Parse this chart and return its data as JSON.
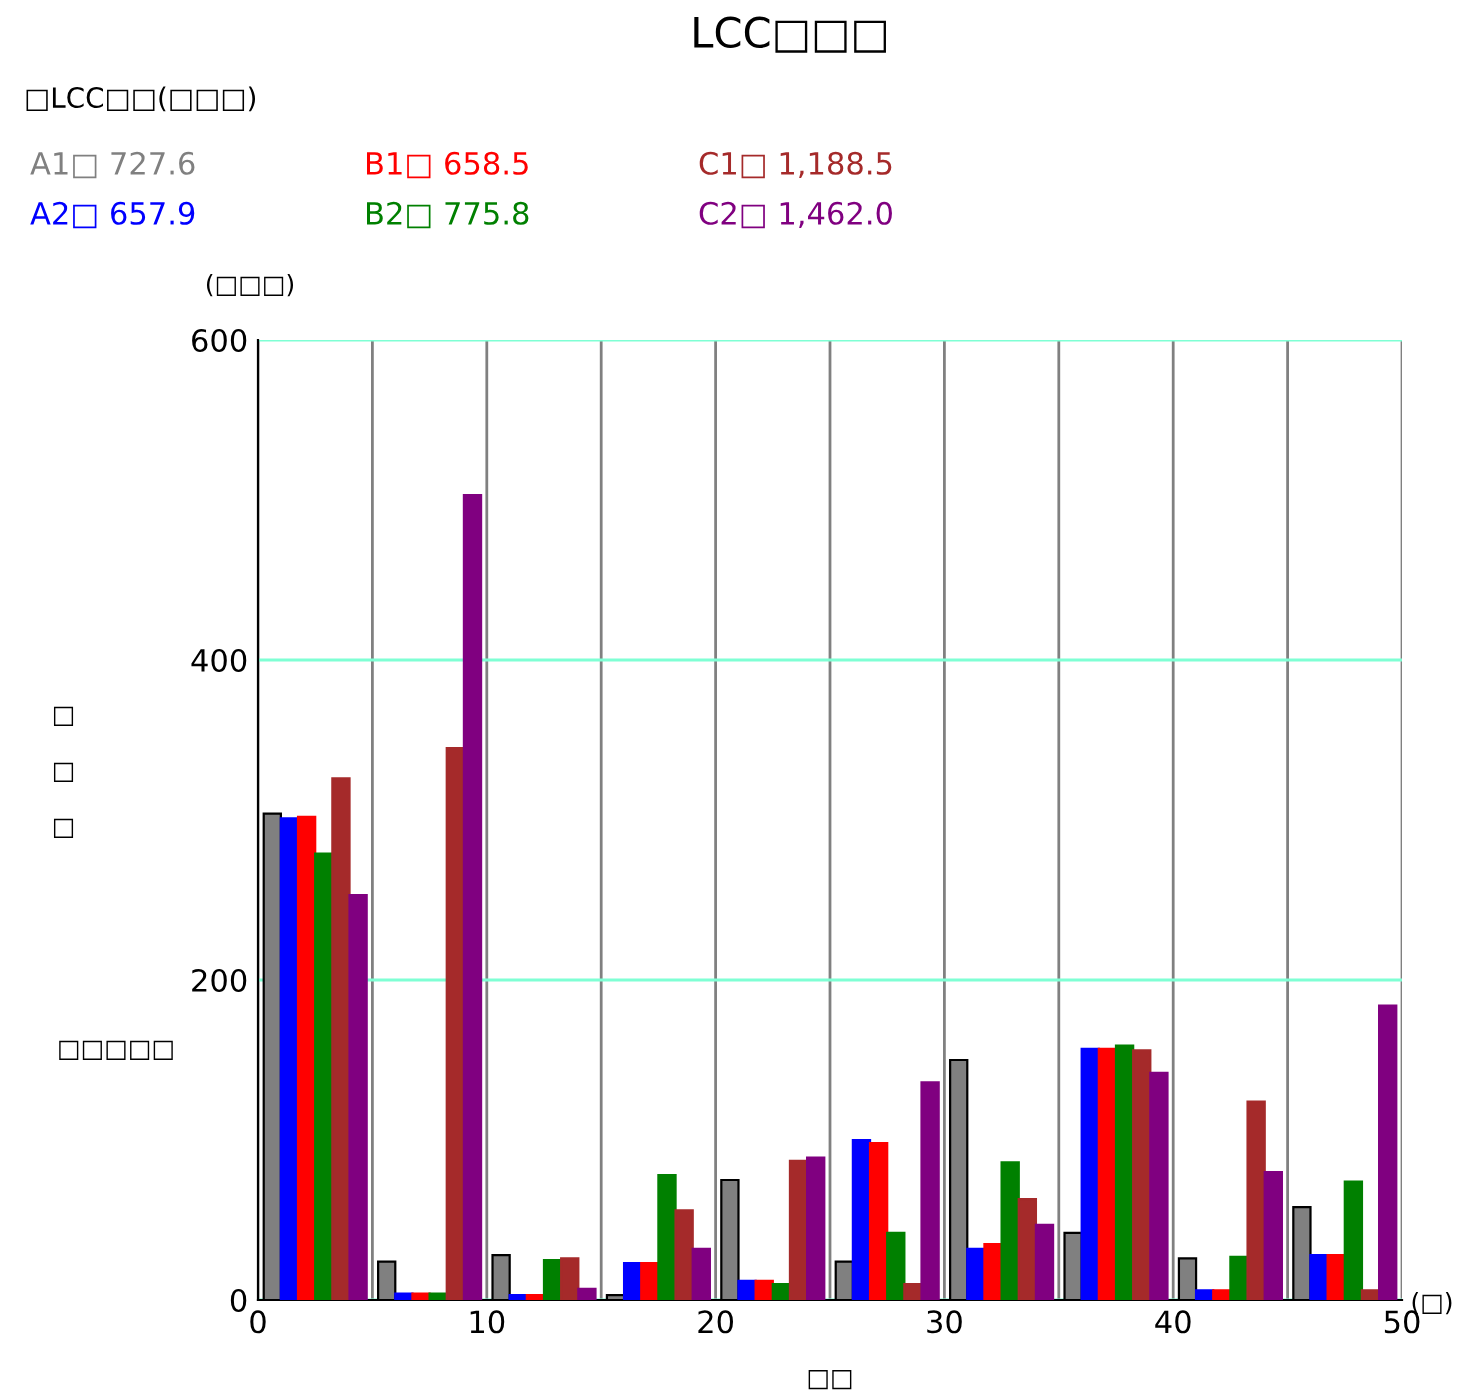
{
  "chart_data": {
    "type": "bar",
    "title": "LCC□□□",
    "subtitle": "□LCC□□(□□□)",
    "xlabel": "□□",
    "ylabel": "□□□",
    "annotations": [
      "(□□□)",
      "(□)",
      "□□□□□"
    ],
    "series": [
      {
        "name": "A1□ 727.6",
        "color": "#808080",
        "x": [
          0.625,
          5.625,
          10.625,
          15.625,
          20.625,
          25.625,
          30.625,
          35.625,
          40.625,
          45.625
        ],
        "values": [
          304,
          24,
          28,
          3,
          75,
          24,
          150,
          42,
          26,
          58
        ]
      },
      {
        "name": "A2□ 657.9",
        "color": "#0000ff",
        "x": [
          1.375,
          6.375,
          11.375,
          16.375,
          21.375,
          26.375,
          31.375,
          36.375,
          41.375,
          46.375
        ],
        "values": [
          301,
          4,
          3,
          23,
          12,
          100,
          32,
          157,
          6,
          28
        ]
      },
      {
        "name": "B1□ 658.5",
        "color": "#ff0000",
        "x": [
          2.125,
          7.125,
          12.125,
          17.125,
          22.125,
          27.125,
          32.125,
          37.125,
          42.125,
          47.125
        ],
        "values": [
          302,
          4,
          3,
          23,
          12,
          98,
          35,
          157,
          6,
          28
        ]
      },
      {
        "name": "B2□ 775.8",
        "color": "#008000",
        "x": [
          2.875,
          7.875,
          12.875,
          17.875,
          22.875,
          27.875,
          32.875,
          37.875,
          42.875,
          47.875
        ],
        "values": [
          279,
          4,
          25,
          78,
          10,
          42,
          86,
          159,
          27,
          74
        ]
      },
      {
        "name": "C1□ 1,188.5",
        "color": "#a52a2a",
        "x": [
          3.625,
          8.625,
          13.625,
          18.625,
          23.625,
          28.625,
          33.625,
          38.625,
          43.625,
          48.625
        ],
        "values": [
          326,
          345,
          26,
          56,
          87,
          10,
          63,
          156,
          124,
          6
        ]
      },
      {
        "name": "C2□ 1,462.0",
        "color": "#800080",
        "x": [
          4.375,
          9.375,
          14.375,
          19.375,
          24.375,
          29.375,
          34.375,
          39.375,
          44.375,
          49.375
        ],
        "values": [
          253,
          503,
          7,
          32,
          89,
          136,
          47,
          142,
          80,
          184
        ]
      }
    ],
    "xlim": [
      0,
      50
    ],
    "xticks": [
      0,
      {
        "value": 5,
        "label": null
      },
      10,
      {
        "value": 15,
        "label": null
      },
      20,
      {
        "value": 25,
        "label": null
      },
      30,
      {
        "value": 35,
        "label": null
      },
      40,
      {
        "value": 45,
        "label": null
      },
      50
    ],
    "ylim": [
      0,
      600
    ],
    "yticks": [
      0,
      200,
      400,
      600
    ],
    "grid": true,
    "legend": "top left"
  }
}
